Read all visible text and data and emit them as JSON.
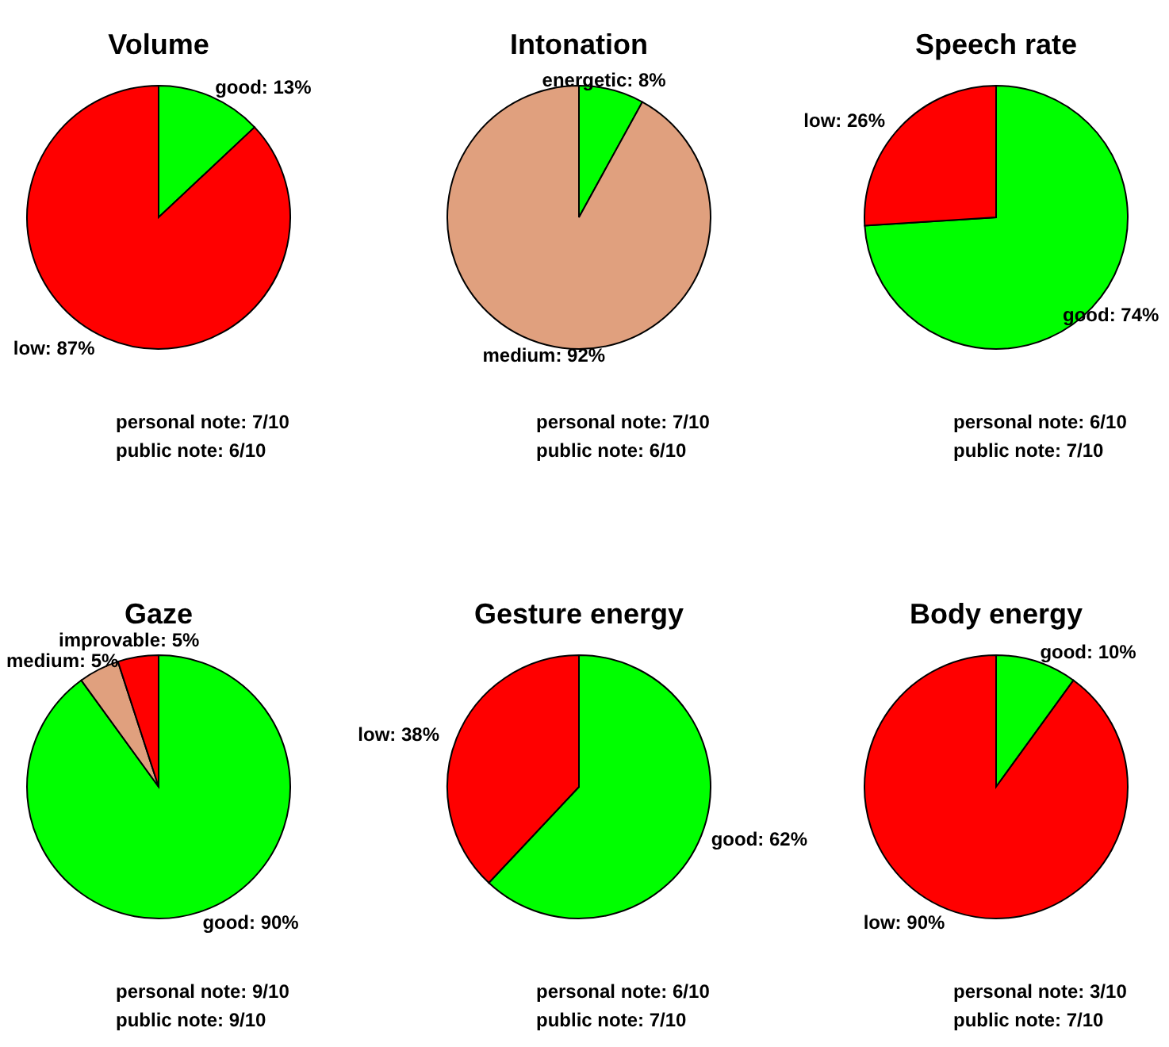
{
  "chart_data": [
    {
      "type": "pie",
      "title": "Volume",
      "categories": [
        "good: 13%",
        "low: 87%"
      ],
      "values": [
        13,
        87
      ],
      "colors": [
        "#00ff00",
        "#ff0000"
      ],
      "annotations": [
        "personal note: 7/10",
        "public note: 6/10"
      ]
    },
    {
      "type": "pie",
      "title": "Intonation",
      "categories": [
        "energetic: 8%",
        "medium: 92%"
      ],
      "values": [
        8,
        92
      ],
      "colors": [
        "#00ff00",
        "#e0a07e"
      ],
      "annotations": [
        "personal note: 7/10",
        "public note: 6/10"
      ]
    },
    {
      "type": "pie",
      "title": "Speech rate",
      "categories": [
        "good: 74%",
        "low: 26%"
      ],
      "values": [
        74,
        26
      ],
      "colors": [
        "#00ff00",
        "#ff0000"
      ],
      "annotations": [
        "personal note: 6/10",
        "public note: 7/10"
      ]
    },
    {
      "type": "pie",
      "title": "Gaze",
      "categories": [
        "good: 90%",
        "medium: 5%",
        "improvable: 5%"
      ],
      "values": [
        90,
        5,
        5
      ],
      "colors": [
        "#00ff00",
        "#e0a07e",
        "#ff0000"
      ],
      "annotations": [
        "personal note: 9/10",
        "public note: 9/10"
      ]
    },
    {
      "type": "pie",
      "title": "Gesture energy",
      "categories": [
        "good: 62%",
        "low: 38%"
      ],
      "values": [
        62,
        38
      ],
      "colors": [
        "#00ff00",
        "#ff0000"
      ],
      "annotations": [
        "personal note: 6/10",
        "public note: 7/10"
      ]
    },
    {
      "type": "pie",
      "title": "Body energy",
      "categories": [
        "good: 10%",
        "low: 90%"
      ],
      "values": [
        10,
        90
      ],
      "colors": [
        "#00ff00",
        "#ff0000"
      ],
      "annotations": [
        "personal note: 3/10",
        "public note: 7/10"
      ]
    }
  ]
}
